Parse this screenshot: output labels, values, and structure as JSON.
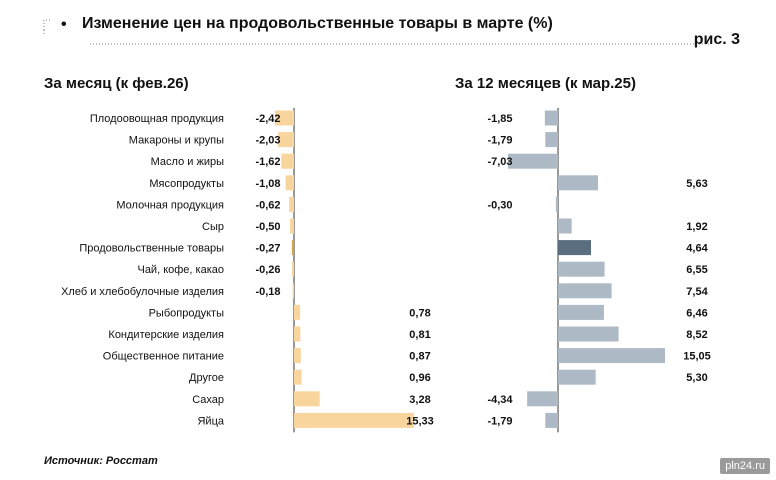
{
  "header": {
    "title": "Изменение цен на продовольственные товары в марте (%)",
    "figure_label": "рис. 3",
    "bullet": "•"
  },
  "footer": {
    "source": "Источник: Росстат",
    "watermark": "pln24.ru"
  },
  "colors": {
    "monthly_bar": "#f9d59e",
    "monthly_highlight": "#d8a545",
    "yearly_bar": "#adb9c4",
    "yearly_highlight": "#5a6d81",
    "axis": "#333333",
    "frame": "#7f7f7f"
  },
  "chart_data": [
    {
      "type": "bar",
      "orientation": "horizontal",
      "title": "За месяц (к фев.26)",
      "categories": [
        "Плодоовощная продукция",
        "Макароны и крупы",
        "Масло и жиры",
        "Мясопродукты",
        "Молочная продукция",
        "Сыр",
        "Продовольственные товары",
        "Чай, кофе, какао",
        "Хлеб и хлебобулочные изделия",
        "Рыбопродукты",
        "Кондитерские изделия",
        "Общественное питание",
        "Другое",
        "Сахар",
        "Яйца"
      ],
      "values": [
        -2.42,
        -2.03,
        -1.62,
        -1.08,
        -0.62,
        -0.5,
        -0.27,
        -0.26,
        -0.18,
        0.78,
        0.81,
        0.87,
        0.96,
        3.28,
        15.33
      ],
      "labels": [
        "-2,42",
        "-2,03",
        "-1,62",
        "-1,08",
        "-0,62",
        "-0,50",
        "-0,27",
        "-0,26",
        "-0,18",
        "0,78",
        "0,81",
        "0,87",
        "0,96",
        "3,28",
        "15,33"
      ],
      "highlight": "Продовольственные товары",
      "xlim": [
        -2.6,
        15.4
      ]
    },
    {
      "type": "bar",
      "orientation": "horizontal",
      "title": "За 12 месяцев (к мар.25)",
      "categories": [
        "Плодоовощная продукция",
        "Макароны и крупы",
        "Масло и жиры",
        "Мясопродукты",
        "Молочная продукция",
        "Сыр",
        "Продовольственные товары",
        "Чай, кофе, какао",
        "Хлеб и хлебобулочные изделия",
        "Рыбопродукты",
        "Кондитерские изделия",
        "Общественное питание",
        "Другое",
        "Сахар",
        "Яйца"
      ],
      "values": [
        -1.85,
        -1.79,
        -7.03,
        5.63,
        -0.3,
        1.92,
        4.64,
        6.55,
        7.54,
        6.46,
        8.52,
        15.05,
        5.3,
        -4.34,
        -1.79
      ],
      "labels": [
        "-1,85",
        "-1,79",
        "-7,03",
        "5,63",
        "-0,30",
        "1,92",
        "4,64",
        "6,55",
        "7,54",
        "6,46",
        "8,52",
        "15,05",
        "5,30",
        "-4,34",
        "-1,79"
      ],
      "highlight": "Продовольственные товары",
      "xlim": [
        -7.1,
        15.1
      ]
    }
  ]
}
